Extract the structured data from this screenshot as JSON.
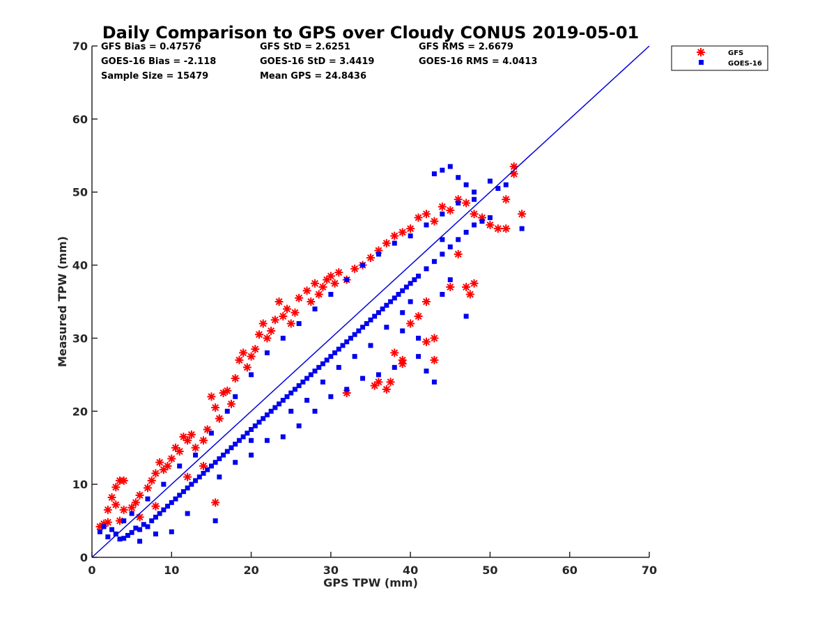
{
  "chart_data": {
    "type": "scatter",
    "title": "Daily Comparison to GPS over Cloudy CONUS 2019-05-01",
    "xlabel": "GPS TPW (mm)",
    "ylabel": "Measured TPW (mm)",
    "xlim": [
      0,
      70
    ],
    "ylim": [
      0,
      70
    ],
    "xticks": [
      "0",
      "10",
      "20",
      "30",
      "40",
      "50",
      "60",
      "70"
    ],
    "yticks": [
      "0",
      "10",
      "20",
      "30",
      "40",
      "50",
      "60",
      "70"
    ],
    "grid": false,
    "legend_position": "outside top-right",
    "stats": {
      "gfs_bias": "GFS Bias = 0.47576",
      "gfs_std": "GFS StD = 2.6251",
      "gfs_rms": "GFS RMS = 2.6679",
      "goes_bias": "GOES-16 Bias = -2.118",
      "goes_std": "GOES-16 StD = 3.4419",
      "goes_rms": "GOES-16 RMS = 4.0413",
      "sample_size": "Sample Size = 15479",
      "mean_gps": "Mean GPS = 24.8436"
    },
    "reference_line": {
      "name": "1:1",
      "x": [
        0,
        70
      ],
      "y": [
        0,
        70
      ],
      "color": "#0000dd"
    },
    "series": [
      {
        "name": "GFS",
        "marker": "asterisk",
        "color": "#ff0000",
        "points": [
          [
            1,
            4.2
          ],
          [
            1.5,
            4.6
          ],
          [
            2,
            4.8
          ],
          [
            2.5,
            8.2
          ],
          [
            3,
            9.6
          ],
          [
            3.5,
            10.5
          ],
          [
            3,
            7.2
          ],
          [
            4,
            6.5
          ],
          [
            5,
            6.8
          ],
          [
            5.5,
            7.5
          ],
          [
            6,
            8.5
          ],
          [
            7,
            9.5
          ],
          [
            7.5,
            10.5
          ],
          [
            8,
            11.5
          ],
          [
            8.5,
            13.0
          ],
          [
            9,
            12.0
          ],
          [
            9.5,
            12.5
          ],
          [
            10,
            13.5
          ],
          [
            10.5,
            15.0
          ],
          [
            11,
            14.5
          ],
          [
            11.5,
            16.5
          ],
          [
            12,
            16.0
          ],
          [
            12.5,
            16.8
          ],
          [
            13,
            15.0
          ],
          [
            14,
            16.0
          ],
          [
            14.5,
            17.5
          ],
          [
            15,
            22.0
          ],
          [
            15.5,
            20.5
          ],
          [
            16,
            19.0
          ],
          [
            16.5,
            22.5
          ],
          [
            17,
            22.8
          ],
          [
            17.5,
            21.0
          ],
          [
            18,
            24.5
          ],
          [
            18.5,
            27.0
          ],
          [
            19,
            28.0
          ],
          [
            19.5,
            26.0
          ],
          [
            20,
            27.5
          ],
          [
            20.5,
            28.5
          ],
          [
            21,
            30.5
          ],
          [
            21.5,
            32.0
          ],
          [
            22,
            30.0
          ],
          [
            22.5,
            31.0
          ],
          [
            23,
            32.5
          ],
          [
            23.5,
            35.0
          ],
          [
            24,
            33.0
          ],
          [
            24.5,
            34.0
          ],
          [
            25,
            32.0
          ],
          [
            25.5,
            33.5
          ],
          [
            26,
            35.5
          ],
          [
            27,
            36.5
          ],
          [
            27.5,
            35.0
          ],
          [
            28,
            37.5
          ],
          [
            28.5,
            36.0
          ],
          [
            29,
            37.0
          ],
          [
            29.5,
            38.0
          ],
          [
            30,
            38.5
          ],
          [
            30.5,
            37.5
          ],
          [
            31,
            39.0
          ],
          [
            32,
            38.0
          ],
          [
            33,
            39.5
          ],
          [
            34,
            40.0
          ],
          [
            35,
            41.0
          ],
          [
            36,
            42.0
          ],
          [
            37,
            43.0
          ],
          [
            38,
            44.0
          ],
          [
            39,
            44.5
          ],
          [
            40,
            45.0
          ],
          [
            41,
            46.5
          ],
          [
            42,
            47.0
          ],
          [
            43,
            46.0
          ],
          [
            44,
            48.0
          ],
          [
            45,
            47.5
          ],
          [
            46,
            49.0
          ],
          [
            47,
            48.5
          ],
          [
            48,
            47.0
          ],
          [
            49,
            46.5
          ],
          [
            50,
            45.5
          ],
          [
            51,
            45.0
          ],
          [
            52,
            45.0
          ],
          [
            53,
            53.5
          ],
          [
            53,
            52.5
          ],
          [
            54,
            47.0
          ],
          [
            52,
            49.0
          ],
          [
            45,
            37.0
          ],
          [
            46,
            41.5
          ],
          [
            47,
            37.0
          ],
          [
            48,
            37.5
          ],
          [
            47.5,
            36.0
          ],
          [
            42,
            29.5
          ],
          [
            43,
            27.0
          ],
          [
            43,
            30.0
          ],
          [
            39,
            27.0
          ],
          [
            37,
            23.0
          ],
          [
            35.5,
            23.5
          ],
          [
            36,
            24.0
          ],
          [
            37.5,
            24.0
          ],
          [
            32,
            22.5
          ],
          [
            38,
            28.0
          ],
          [
            39,
            26.5
          ],
          [
            40,
            32.0
          ],
          [
            41,
            33.0
          ],
          [
            42,
            35.0
          ],
          [
            15.5,
            7.5
          ],
          [
            4,
            10.5
          ],
          [
            2,
            6.5
          ],
          [
            3.5,
            5.0
          ],
          [
            6,
            5.5
          ],
          [
            8,
            7.0
          ],
          [
            12,
            11.0
          ],
          [
            14,
            12.5
          ]
        ]
      },
      {
        "name": "GOES-16",
        "marker": "square",
        "color": "#0000ee",
        "points": [
          [
            1,
            3.5
          ],
          [
            1.5,
            4.2
          ],
          [
            2,
            2.8
          ],
          [
            2.5,
            3.8
          ],
          [
            3,
            3.2
          ],
          [
            3.5,
            2.5
          ],
          [
            4,
            2.6
          ],
          [
            4.5,
            3.0
          ],
          [
            5,
            3.4
          ],
          [
            5.5,
            4.0
          ],
          [
            6,
            3.8
          ],
          [
            6.5,
            4.5
          ],
          [
            7,
            4.2
          ],
          [
            7.5,
            5.0
          ],
          [
            8,
            5.5
          ],
          [
            8.5,
            6.0
          ],
          [
            9,
            6.5
          ],
          [
            9.5,
            7.0
          ],
          [
            10,
            7.5
          ],
          [
            10.5,
            8.0
          ],
          [
            11,
            8.5
          ],
          [
            11.5,
            9.0
          ],
          [
            12,
            9.5
          ],
          [
            12.5,
            10.0
          ],
          [
            13,
            10.5
          ],
          [
            13.5,
            11.0
          ],
          [
            14,
            11.5
          ],
          [
            14.5,
            12.0
          ],
          [
            15,
            12.5
          ],
          [
            15.5,
            13.0
          ],
          [
            16,
            13.5
          ],
          [
            16.5,
            14.0
          ],
          [
            17,
            14.5
          ],
          [
            17.5,
            15.0
          ],
          [
            18,
            15.5
          ],
          [
            18.5,
            16.0
          ],
          [
            19,
            16.5
          ],
          [
            19.5,
            17.0
          ],
          [
            20,
            17.5
          ],
          [
            20.5,
            18.0
          ],
          [
            21,
            18.5
          ],
          [
            21.5,
            19.0
          ],
          [
            22,
            19.5
          ],
          [
            22.5,
            20.0
          ],
          [
            23,
            20.5
          ],
          [
            23.5,
            21.0
          ],
          [
            24,
            21.5
          ],
          [
            24.5,
            22.0
          ],
          [
            25,
            22.5
          ],
          [
            25.5,
            23.0
          ],
          [
            26,
            23.5
          ],
          [
            26.5,
            24.0
          ],
          [
            27,
            24.5
          ],
          [
            27.5,
            25.0
          ],
          [
            28,
            25.5
          ],
          [
            28.5,
            26.0
          ],
          [
            29,
            26.5
          ],
          [
            29.5,
            27.0
          ],
          [
            30,
            27.5
          ],
          [
            30.5,
            28.0
          ],
          [
            31,
            28.5
          ],
          [
            31.5,
            29.0
          ],
          [
            32,
            29.5
          ],
          [
            32.5,
            30.0
          ],
          [
            33,
            30.5
          ],
          [
            33.5,
            31.0
          ],
          [
            34,
            31.5
          ],
          [
            34.5,
            32.0
          ],
          [
            35,
            32.5
          ],
          [
            35.5,
            33.0
          ],
          [
            36,
            33.5
          ],
          [
            36.5,
            34.0
          ],
          [
            37,
            34.5
          ],
          [
            37.5,
            35.0
          ],
          [
            38,
            35.5
          ],
          [
            38.5,
            36.0
          ],
          [
            39,
            36.5
          ],
          [
            39.5,
            37.0
          ],
          [
            40,
            37.5
          ],
          [
            40.5,
            38.0
          ],
          [
            41,
            38.5
          ],
          [
            42,
            39.5
          ],
          [
            43,
            40.5
          ],
          [
            44,
            41.5
          ],
          [
            45,
            42.5
          ],
          [
            46,
            43.5
          ],
          [
            47,
            44.5
          ],
          [
            48,
            45.5
          ],
          [
            49,
            46.0
          ],
          [
            50,
            46.5
          ],
          [
            43,
            52.5
          ],
          [
            44,
            53.0
          ],
          [
            45,
            53.5
          ],
          [
            46,
            52.0
          ],
          [
            47,
            51.0
          ],
          [
            48,
            50.0
          ],
          [
            50,
            51.5
          ],
          [
            51,
            50.5
          ],
          [
            52,
            51.0
          ],
          [
            54,
            45.0
          ],
          [
            43,
            24.0
          ],
          [
            42,
            25.5
          ],
          [
            41,
            27.5
          ],
          [
            38,
            26.0
          ],
          [
            36,
            25.0
          ],
          [
            34,
            24.5
          ],
          [
            32,
            23.0
          ],
          [
            30,
            22.0
          ],
          [
            28,
            20.0
          ],
          [
            26,
            18.0
          ],
          [
            24,
            16.5
          ],
          [
            22,
            16.0
          ],
          [
            20,
            16.0
          ],
          [
            18,
            13.0
          ],
          [
            16,
            11.0
          ],
          [
            15.5,
            5.0
          ],
          [
            12,
            6.0
          ],
          [
            10,
            3.5
          ],
          [
            8,
            3.2
          ],
          [
            6,
            2.2
          ],
          [
            20,
            25.0
          ],
          [
            22,
            28.0
          ],
          [
            24,
            30.0
          ],
          [
            26,
            32.0
          ],
          [
            28,
            34.0
          ],
          [
            30,
            36.0
          ],
          [
            32,
            38.0
          ],
          [
            34,
            40.0
          ],
          [
            36,
            41.5
          ],
          [
            38,
            43.0
          ],
          [
            40,
            44.0
          ],
          [
            42,
            45.5
          ],
          [
            44,
            47.0
          ],
          [
            46,
            48.5
          ],
          [
            48,
            49.0
          ],
          [
            15,
            17.0
          ],
          [
            17,
            20.0
          ],
          [
            18,
            22.0
          ],
          [
            13,
            14.0
          ],
          [
            11,
            12.5
          ],
          [
            9,
            10.0
          ],
          [
            7,
            8.0
          ],
          [
            5,
            6.0
          ],
          [
            4,
            5.0
          ],
          [
            39,
            31.0
          ],
          [
            40,
            35.0
          ],
          [
            41,
            30.0
          ],
          [
            44,
            36.0
          ],
          [
            45,
            38.0
          ],
          [
            47,
            33.0
          ],
          [
            20,
            14.0
          ],
          [
            25,
            20.0
          ],
          [
            27,
            21.5
          ],
          [
            29,
            24.0
          ],
          [
            31,
            26.0
          ],
          [
            33,
            27.5
          ],
          [
            35,
            29.0
          ],
          [
            37,
            31.5
          ],
          [
            39,
            33.5
          ],
          [
            44,
            43.5
          ]
        ]
      }
    ]
  }
}
